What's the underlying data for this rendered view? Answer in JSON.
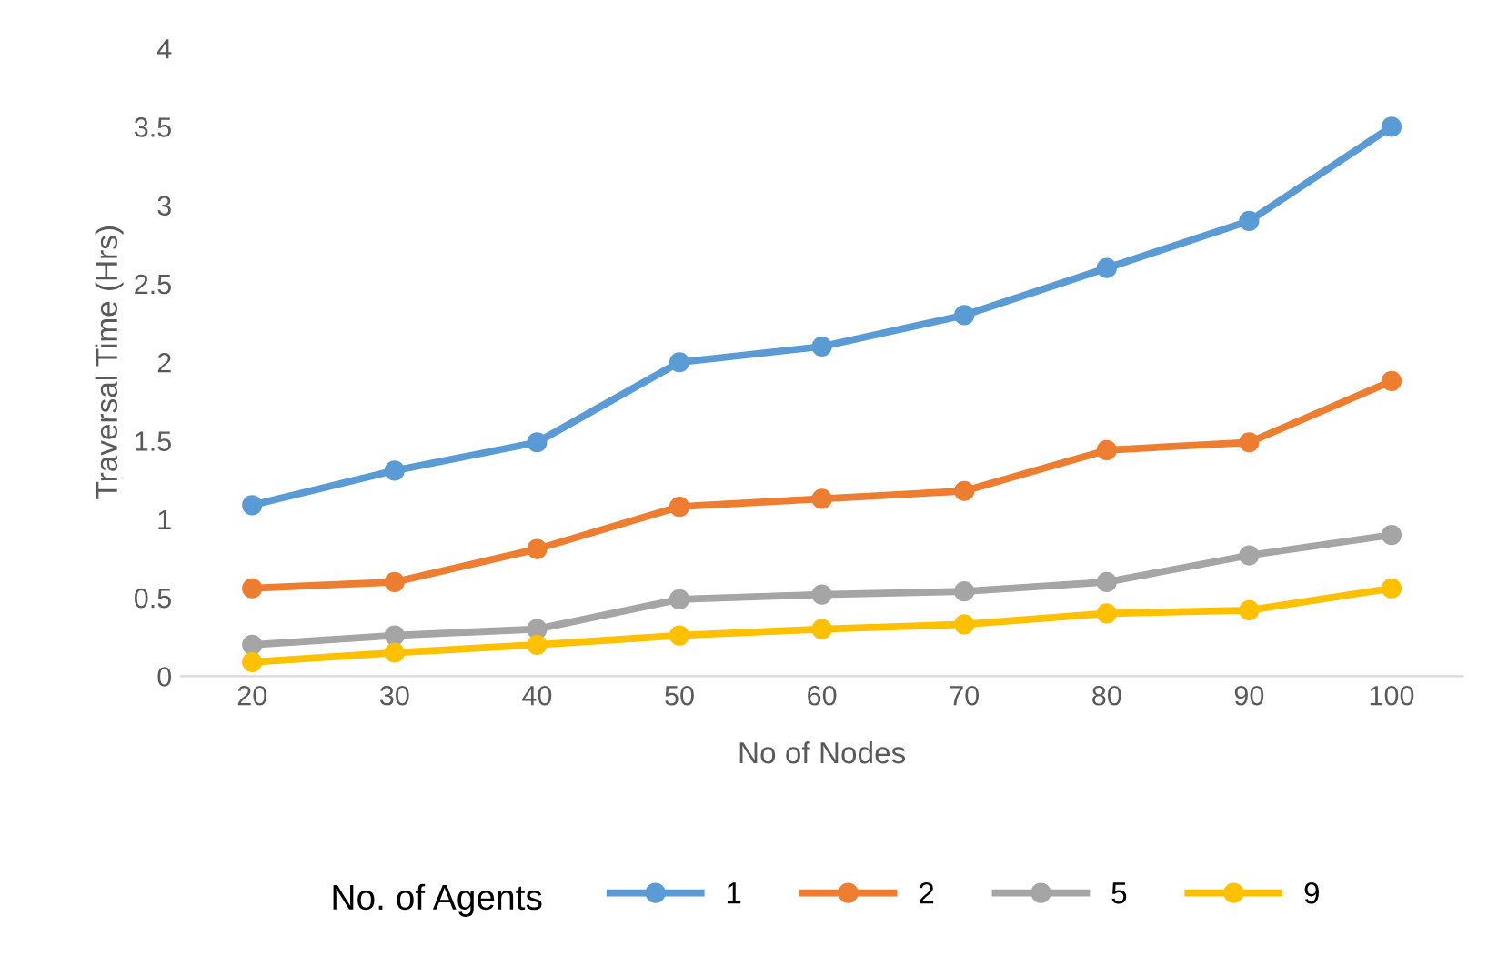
{
  "chart_data": {
    "type": "line",
    "xlabel": "No of Nodes",
    "ylabel": "Traversal Time (Hrs)",
    "legend_title": "No. of Agents",
    "legend": "bottom",
    "marker": "circle",
    "line_style": "solid",
    "grid": false,
    "categories": [
      "20",
      "30",
      "40",
      "50",
      "60",
      "70",
      "80",
      "90",
      "100"
    ],
    "ylim": [
      0,
      4
    ],
    "yticks": [
      0,
      0.5,
      1,
      1.5,
      2,
      2.5,
      3,
      3.5,
      4
    ],
    "series": [
      {
        "name": "1",
        "color": "#5b9bd5",
        "values": [
          1.09,
          1.31,
          1.49,
          2.0,
          2.1,
          2.3,
          2.6,
          2.9,
          3.5
        ]
      },
      {
        "name": "2",
        "color": "#ed7d31",
        "values": [
          0.56,
          0.6,
          0.81,
          1.08,
          1.13,
          1.18,
          1.44,
          1.49,
          1.88
        ]
      },
      {
        "name": "5",
        "color": "#a5a5a5",
        "values": [
          0.2,
          0.26,
          0.3,
          0.49,
          0.52,
          0.54,
          0.6,
          0.77,
          0.9
        ]
      },
      {
        "name": "9",
        "color": "#ffc000",
        "values": [
          0.09,
          0.15,
          0.2,
          0.26,
          0.3,
          0.33,
          0.4,
          0.42,
          0.56
        ]
      }
    ]
  }
}
